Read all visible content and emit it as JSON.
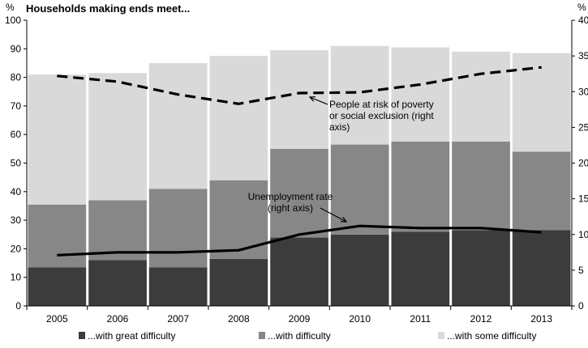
{
  "chart_data": {
    "type": "bar",
    "title": "Households making ends meet...",
    "left_axis_unit": "%",
    "right_axis_unit": "%",
    "categories": [
      "2005",
      "2006",
      "2007",
      "2008",
      "2009",
      "2010",
      "2011",
      "2012",
      "2013"
    ],
    "ylim": [
      0,
      100
    ],
    "y_ticks": [
      0,
      10,
      20,
      30,
      40,
      50,
      60,
      70,
      80,
      90,
      100
    ],
    "y2lim": [
      0,
      40
    ],
    "y2_ticks": [
      0,
      5,
      10,
      15,
      20,
      25,
      30,
      35,
      40
    ],
    "grid": false,
    "legend_position": "bottom",
    "series": [
      {
        "name": "...with great difficulty",
        "color": "#3c3c3c",
        "values": [
          13.5,
          16,
          13.5,
          16.5,
          24,
          25,
          26,
          26.5,
          26.5
        ]
      },
      {
        "name": "...with difficulty",
        "color": "#878787",
        "values": [
          22,
          21,
          27.5,
          27.5,
          31,
          31.5,
          31.5,
          31,
          27.5
        ]
      },
      {
        "name": "...with some difficulty",
        "color": "#d9d9d9",
        "values": [
          45.5,
          44.5,
          44,
          43.5,
          34.5,
          34.5,
          33,
          31.5,
          34.5
        ]
      }
    ],
    "lines": [
      {
        "label_lines": [
          "People at risk of poverty",
          "or social exclusion (right",
          "axis)"
        ],
        "style": "dashed",
        "axis": "right",
        "values": [
          32.2,
          31.4,
          29.6,
          28.3,
          29.8,
          29.9,
          31,
          32.5,
          33.4
        ]
      },
      {
        "label_lines": [
          "Unemployment rate",
          "(right axis)"
        ],
        "style": "solid",
        "axis": "right",
        "values": [
          7.1,
          7.5,
          7.5,
          7.8,
          10,
          11.2,
          10.9,
          10.9,
          10.3
        ]
      }
    ]
  }
}
